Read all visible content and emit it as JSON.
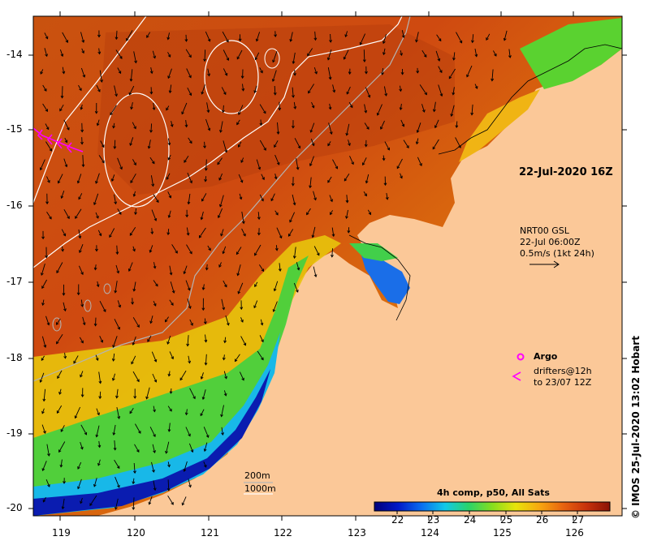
{
  "map": {
    "timestamp": "22-Jul-2020 16Z",
    "current_legend": {
      "source": "NRT00 GSL",
      "time": "22-Jul 06:00Z",
      "scale": "0.5m/s (1kt 24h)"
    },
    "argo_label": "Argo",
    "drifters_label_1": "drifters@12h",
    "drifters_label_2": "to 23/07 12Z",
    "isobath_1": "200m",
    "isobath_2": "1000m",
    "credit": "© IMOS 25-Jul-2020 13:02 Hobart",
    "longitude_ticks": [
      "119",
      "120",
      "121",
      "122",
      "123",
      "124",
      "125",
      "126"
    ],
    "latitude_ticks": [
      "-14",
      "-15",
      "-16",
      "-17",
      "-18",
      "-19",
      "-20"
    ],
    "colorbar": {
      "title": "4h comp, p50, All Sats",
      "ticks": [
        "22",
        "23",
        "24",
        "25",
        "26",
        "27"
      ],
      "colors": [
        "#00007a",
        "#0018c8",
        "#0a6ef0",
        "#12c8e8",
        "#2ad46a",
        "#86de1e",
        "#e8e40a",
        "#f7a810",
        "#e86410",
        "#c8320c",
        "#8a1206"
      ]
    },
    "colors": {
      "land": "#fbc898",
      "isobath_200": "#b4b4b4",
      "isobath_1000": "#ffffff",
      "drifter": "#ff00ff"
    }
  }
}
